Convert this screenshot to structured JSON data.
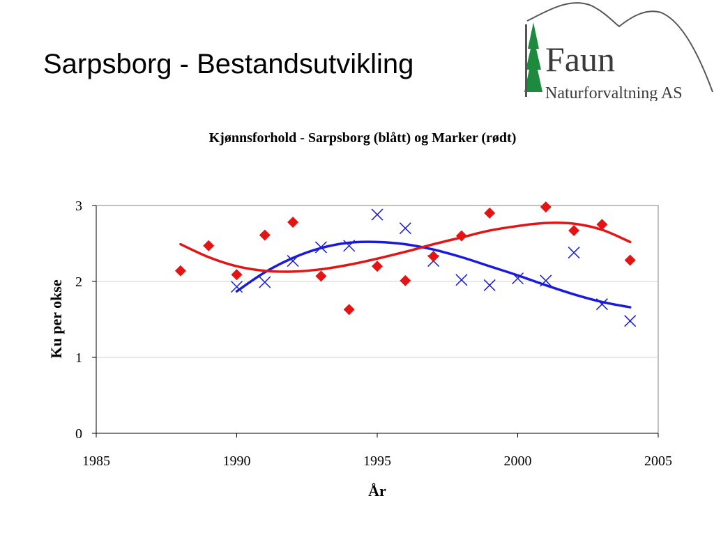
{
  "slide": {
    "title": "Sarpsborg - Bestandsutvikling"
  },
  "logo": {
    "name": "Faun",
    "subtitle": "Naturforvaltning AS",
    "colors": {
      "tree": "#1e8a3e",
      "text": "#3a3a3a",
      "outline": "#555555"
    }
  },
  "chart_data": {
    "type": "scatter",
    "title": "Kjønnsforhold - Sarpsborg (blått) og Marker (rødt)",
    "xlabel": "År",
    "ylabel": "Ku per okse",
    "xlim": [
      1985,
      2005
    ],
    "ylim": [
      0,
      3
    ],
    "xticks": [
      1985,
      1990,
      1995,
      2000,
      2005
    ],
    "yticks": [
      0,
      1,
      2,
      3
    ],
    "grid": "horizontal",
    "legend": "none",
    "series": [
      {
        "color": "#1a1adf",
        "marker": "x",
        "x": [
          1990,
          1991,
          1992,
          1993,
          1994,
          1995,
          1996,
          1997,
          1998,
          1999,
          2000,
          2001,
          2002,
          2003,
          2004
        ],
        "y": [
          1.93,
          1.99,
          2.27,
          2.45,
          2.47,
          2.88,
          2.7,
          2.27,
          2.02,
          1.95,
          2.04,
          2.01,
          2.38,
          1.7,
          1.48
        ],
        "trend": {
          "x": [
            1990,
            1991,
            1992,
            1993,
            1994,
            1995,
            1996,
            1997,
            1998,
            1999,
            2000,
            2001,
            2002,
            2003,
            2004
          ],
          "y": [
            1.87,
            2.12,
            2.31,
            2.44,
            2.51,
            2.52,
            2.49,
            2.42,
            2.32,
            2.2,
            2.08,
            1.95,
            1.83,
            1.73,
            1.66
          ]
        }
      },
      {
        "color": "#e41414",
        "marker": "diamond",
        "x": [
          1988,
          1989,
          1990,
          1991,
          1992,
          1993,
          1994,
          1995,
          1996,
          1997,
          1998,
          1999,
          2001,
          2002,
          2003,
          2004
        ],
        "y": [
          2.14,
          2.47,
          2.09,
          2.61,
          2.78,
          2.07,
          1.63,
          2.2,
          2.01,
          2.33,
          2.6,
          2.9,
          2.98,
          2.67,
          2.75,
          2.28
        ],
        "trend": {
          "x": [
            1988,
            1989,
            1990,
            1991,
            1992,
            1993,
            1994,
            1995,
            1996,
            1997,
            1998,
            1999,
            2000,
            2001,
            2002,
            2003,
            2004
          ],
          "y": [
            2.49,
            2.32,
            2.2,
            2.14,
            2.13,
            2.16,
            2.22,
            2.3,
            2.39,
            2.49,
            2.58,
            2.67,
            2.73,
            2.77,
            2.76,
            2.68,
            2.52
          ]
        }
      }
    ]
  }
}
